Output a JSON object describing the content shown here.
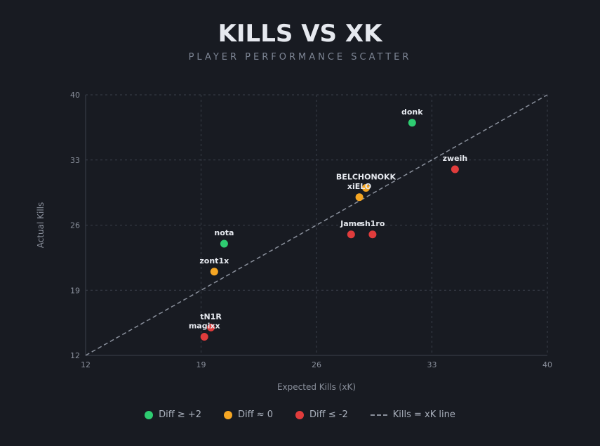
{
  "title": "KILLS VS XK",
  "subtitle": "PLAYER PERFORMANCE SCATTER",
  "colors": {
    "background": "#181b22",
    "positive": "#2ecc71",
    "neutral": "#f5a623",
    "negative": "#e03c3c",
    "reference_line": "#8a909c",
    "grid": "#3a3f4a"
  },
  "legend": {
    "items": [
      {
        "label": "Diff ≥ +2",
        "color": "#2ecc71",
        "kind": "dot"
      },
      {
        "label": "Diff ≈ 0",
        "color": "#f5a623",
        "kind": "dot"
      },
      {
        "label": "Diff ≤ -2",
        "color": "#e03c3c",
        "kind": "dot"
      },
      {
        "label": "Kills = xK line",
        "color": "#8a909c",
        "kind": "dash"
      }
    ]
  },
  "chart_data": {
    "type": "scatter",
    "title": "KILLS VS XK",
    "subtitle": "PLAYER PERFORMANCE SCATTER",
    "xlabel": "Expected Kills (xK)",
    "ylabel": "Actual Kills",
    "xlim": [
      12,
      40
    ],
    "ylim": [
      12,
      40
    ],
    "xticks": [
      12,
      19,
      26,
      33,
      40
    ],
    "yticks": [
      12,
      19,
      26,
      33,
      40
    ],
    "grid": true,
    "legend_position": "bottom",
    "reference_line": {
      "label": "Kills = xK line",
      "from": [
        12,
        12
      ],
      "to": [
        40,
        40
      ]
    },
    "points": [
      {
        "name": "donk",
        "x": 31.8,
        "y": 37.0,
        "group": "positive"
      },
      {
        "name": "zweih",
        "x": 34.4,
        "y": 32.0,
        "group": "negative"
      },
      {
        "name": "BELCHONOKK",
        "x": 29.0,
        "y": 30.0,
        "group": "neutral"
      },
      {
        "name": "xiELO",
        "x": 28.6,
        "y": 29.0,
        "group": "neutral"
      },
      {
        "name": "Jame",
        "x": 28.1,
        "y": 25.0,
        "group": "negative"
      },
      {
        "name": "sh1ro",
        "x": 29.4,
        "y": 25.0,
        "group": "negative"
      },
      {
        "name": "nota",
        "x": 20.4,
        "y": 24.0,
        "group": "positive"
      },
      {
        "name": "zont1x",
        "x": 19.8,
        "y": 21.0,
        "group": "neutral"
      },
      {
        "name": "tN1R",
        "x": 19.6,
        "y": 15.0,
        "group": "negative"
      },
      {
        "name": "magixx",
        "x": 19.2,
        "y": 14.0,
        "group": "negative"
      }
    ]
  }
}
